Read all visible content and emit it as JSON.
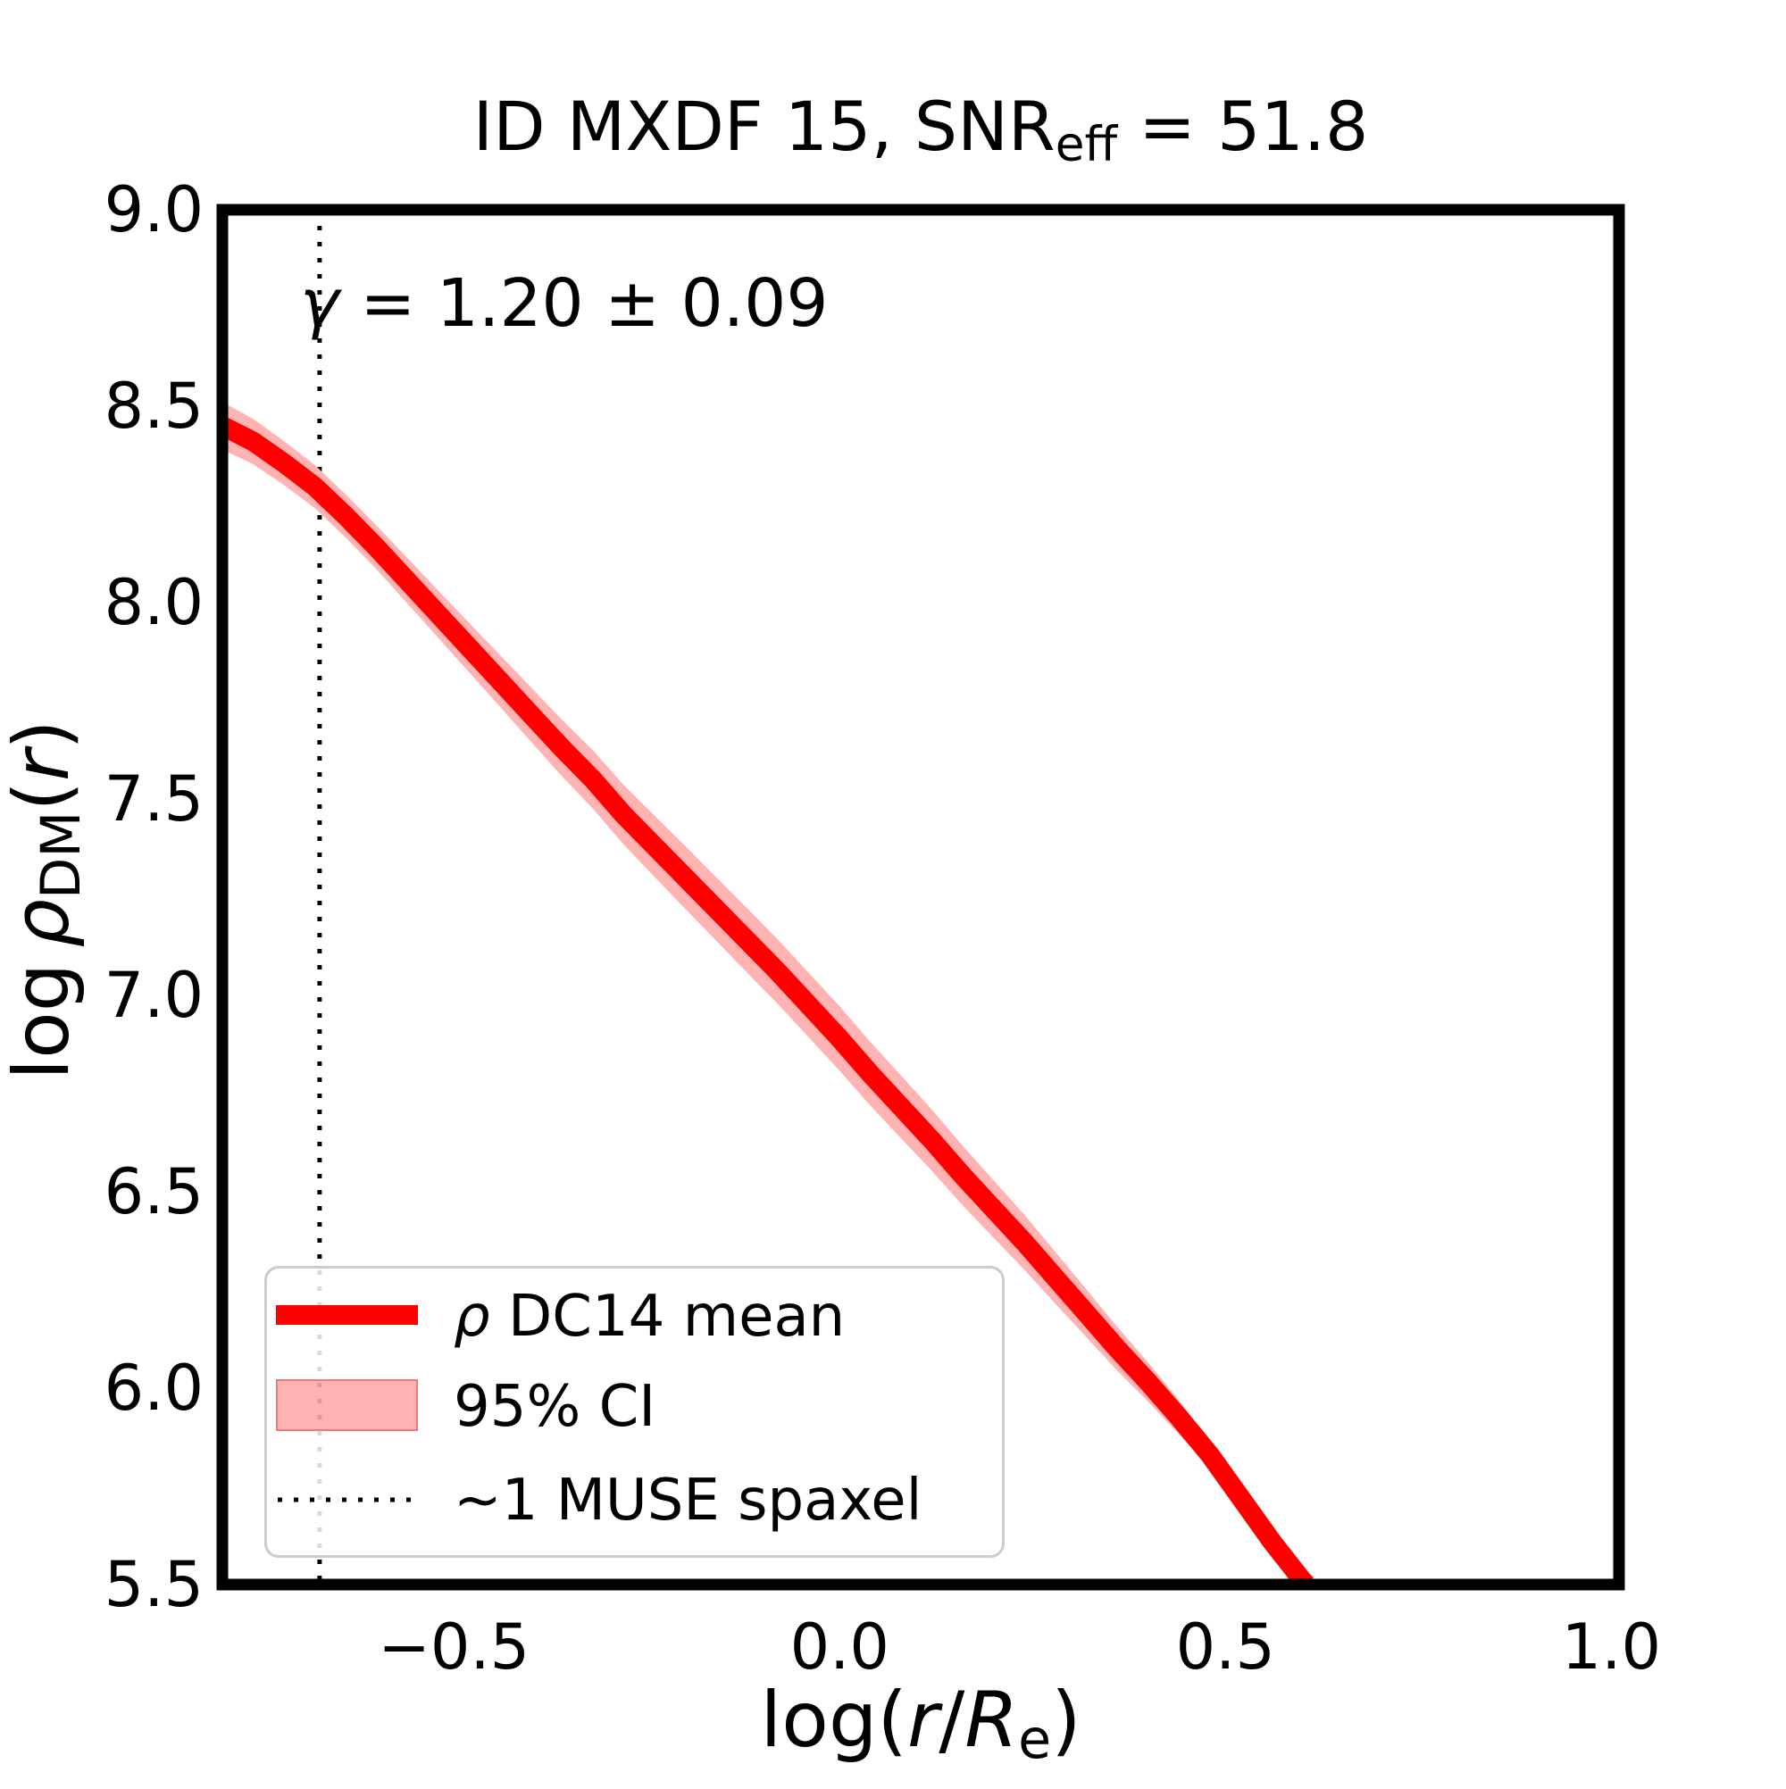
{
  "figure": {
    "title": {
      "prefix": "ID MXDF 15, SNR",
      "subscript": "eff",
      "suffix": " = 51.8"
    },
    "annotation": {
      "symbol": "γ",
      "text": " = 1.20 ± 0.09"
    },
    "x_axis": {
      "label": {
        "pre": "log(",
        "r_italic": "r",
        "slash": "/",
        "R_italic": "R",
        "subscript": "e",
        "post": ")"
      },
      "tick_labels": [
        "−0.5",
        "0.0",
        "0.5",
        "1.0"
      ]
    },
    "y_axis": {
      "label": {
        "log": "log ",
        "rho_italic": "ρ",
        "subscript": "DM",
        "open": "(",
        "r_italic": "r",
        "close": ")"
      },
      "tick_labels": [
        "9.0",
        "8.5",
        "8.0",
        "7.5",
        "7.0",
        "6.5",
        "6.0",
        "5.5"
      ]
    },
    "legend": {
      "entries": [
        {
          "symbol_italic": "ρ",
          "label": " DC14 mean",
          "marker": "thick-red-line"
        },
        {
          "symbol_italic": "",
          "label": "95% CI",
          "marker": "pink-band-patch"
        },
        {
          "symbol_italic": "",
          "label": "~1 MUSE spaxel",
          "marker": "black-dotted-line"
        }
      ]
    }
  },
  "chart_data": {
    "type": "line",
    "title": "ID MXDF 15, SNR_eff = 51.8",
    "xlabel": "log(r/R_e)",
    "ylabel": "log rho_DM(r)",
    "xlim": [
      -0.8,
      1.01
    ],
    "ylim": [
      5.5,
      9.0
    ],
    "x_ticks": [
      -0.5,
      0.0,
      0.5,
      1.0
    ],
    "y_ticks": [
      9.0,
      8.5,
      8.0,
      7.5,
      7.0,
      6.5,
      6.0,
      5.5
    ],
    "grid": false,
    "legend_position": "lower left",
    "annotation": "gamma = 1.20 +/- 0.09",
    "vline": {
      "x": -0.674,
      "label": "~1 MUSE spaxel",
      "style": "dotted",
      "color": "#000000"
    },
    "series": [
      {
        "name": "rho DC14 mean",
        "type": "line",
        "color": "#ff0000",
        "x": [
          -0.8,
          -0.76,
          -0.72,
          -0.68,
          -0.64,
          -0.6,
          -0.56,
          -0.52,
          -0.48,
          -0.44,
          -0.4,
          -0.36,
          -0.32,
          -0.28,
          -0.24,
          -0.2,
          -0.16,
          -0.12,
          -0.08,
          -0.04,
          0.0,
          0.04,
          0.08,
          0.12,
          0.16,
          0.2,
          0.24,
          0.28,
          0.32,
          0.36,
          0.4,
          0.44,
          0.48,
          0.52,
          0.56,
          0.6,
          0.605
        ],
        "y": [
          8.45,
          8.41,
          8.355,
          8.295,
          8.22,
          8.14,
          8.055,
          7.97,
          7.885,
          7.8,
          7.715,
          7.63,
          7.55,
          7.46,
          7.38,
          7.3,
          7.22,
          7.14,
          7.06,
          6.975,
          6.89,
          6.8,
          6.715,
          6.63,
          6.54,
          6.455,
          6.37,
          6.28,
          6.19,
          6.1,
          6.015,
          5.925,
          5.83,
          5.72,
          5.61,
          5.51,
          5.5
        ]
      },
      {
        "name": "95% CI",
        "type": "band",
        "color": "#ffb3b3",
        "halfwidth": [
          0.06,
          0.058,
          0.056,
          0.055,
          0.055,
          0.056,
          0.058,
          0.06,
          0.063,
          0.066,
          0.069,
          0.072,
          0.074,
          0.076,
          0.078,
          0.08,
          0.081,
          0.082,
          0.082,
          0.082,
          0.082,
          0.081,
          0.08,
          0.078,
          0.076,
          0.073,
          0.07,
          0.066,
          0.061,
          0.056,
          0.05,
          0.043,
          0.035,
          0.027,
          0.02,
          0.014,
          0.012
        ]
      }
    ]
  }
}
